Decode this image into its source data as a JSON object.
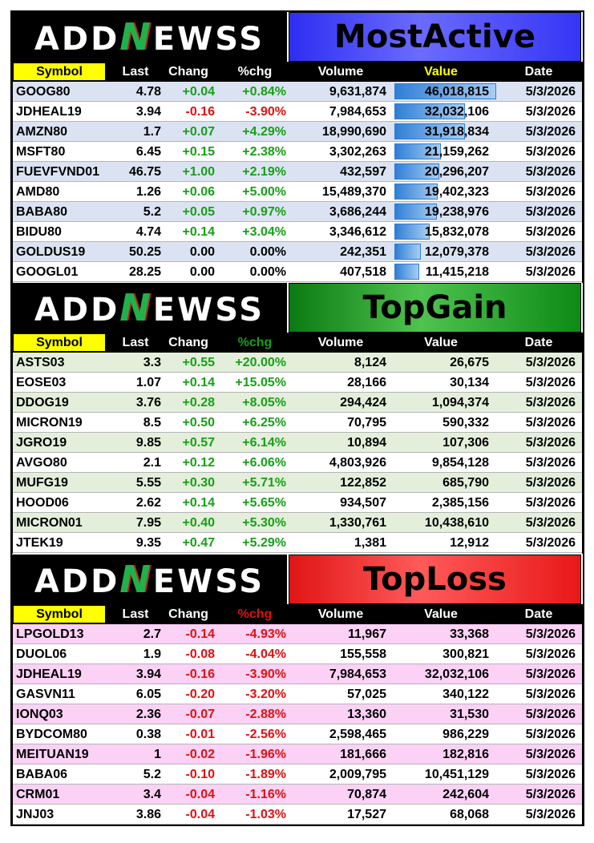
{
  "brand": {
    "logo_text_pre": "ADD",
    "logo_text_n": "N",
    "logo_text_post": "EWSS"
  },
  "columns": {
    "symbol": "Symbol",
    "last": "Last",
    "change": "Chang",
    "pct": "%chg",
    "volume": "Volume",
    "value": "Value",
    "date": "Date"
  },
  "colors": {
    "positive": "#16a016",
    "negative": "#e01010",
    "header_symbol_bg": "#ffff00",
    "mostactive_stripe": "#dbe3f2",
    "topgain_stripe": "#e3efda",
    "toploss_stripe": "#fbd1f5"
  },
  "panels": [
    {
      "id": "mostactive",
      "title": "MostActive",
      "pct_header_color": "#ffffff",
      "value_header_color": "#ffff00",
      "stripe": "#dbe3f2",
      "rows": [
        {
          "symbol": "GOOG80",
          "last": "4.78",
          "change": "+0.04",
          "pct": "+0.84%",
          "volume": "9,631,874",
          "value": "46,018,815",
          "date": "5/3/2026",
          "bar_fraction": 1.0,
          "dir": "pos"
        },
        {
          "symbol": "JDHEAL19",
          "last": "3.94",
          "change": "-0.16",
          "pct": "-3.90%",
          "volume": "7,984,653",
          "value": "32,032,106",
          "date": "5/3/2026",
          "bar_fraction": 0.696,
          "dir": "neg"
        },
        {
          "symbol": "AMZN80",
          "last": "1.7",
          "change": "+0.07",
          "pct": "+4.29%",
          "volume": "18,990,690",
          "value": "31,918,834",
          "date": "5/3/2026",
          "bar_fraction": 0.694,
          "dir": "pos"
        },
        {
          "symbol": "MSFT80",
          "last": "6.45",
          "change": "+0.15",
          "pct": "+2.38%",
          "volume": "3,302,263",
          "value": "21,159,262",
          "date": "5/3/2026",
          "bar_fraction": 0.46,
          "dir": "pos"
        },
        {
          "symbol": "FUEVFVND01",
          "last": "46.75",
          "change": "+1.00",
          "pct": "+2.19%",
          "volume": "432,597",
          "value": "20,296,207",
          "date": "5/3/2026",
          "bar_fraction": 0.441,
          "dir": "pos"
        },
        {
          "symbol": "AMD80",
          "last": "1.26",
          "change": "+0.06",
          "pct": "+5.00%",
          "volume": "15,489,370",
          "value": "19,402,323",
          "date": "5/3/2026",
          "bar_fraction": 0.422,
          "dir": "pos"
        },
        {
          "symbol": "BABA80",
          "last": "5.2",
          "change": "+0.05",
          "pct": "+0.97%",
          "volume": "3,686,244",
          "value": "19,238,976",
          "date": "5/3/2026",
          "bar_fraction": 0.418,
          "dir": "pos"
        },
        {
          "symbol": "BIDU80",
          "last": "4.74",
          "change": "+0.14",
          "pct": "+3.04%",
          "volume": "3,346,612",
          "value": "15,832,078",
          "date": "5/3/2026",
          "bar_fraction": 0.344,
          "dir": "pos"
        },
        {
          "symbol": "GOLDUS19",
          "last": "50.25",
          "change": "0.00",
          "pct": "0.00%",
          "volume": "242,351",
          "value": "12,079,378",
          "date": "5/3/2026",
          "bar_fraction": 0.262,
          "dir": "neutral"
        },
        {
          "symbol": "GOOGL01",
          "last": "28.25",
          "change": "0.00",
          "pct": "0.00%",
          "volume": "407,518",
          "value": "11,415,218",
          "date": "5/3/2026",
          "bar_fraction": 0.248,
          "dir": "neutral"
        }
      ]
    },
    {
      "id": "topgain",
      "title": "TopGain",
      "pct_header_color": "#16a016",
      "value_header_color": "#ffffff",
      "stripe": "#e3efda",
      "rows": [
        {
          "symbol": "ASTS03",
          "last": "3.3",
          "change": "+0.55",
          "pct": "+20.00%",
          "volume": "8,124",
          "value": "26,675",
          "date": "5/3/2026",
          "dir": "pos"
        },
        {
          "symbol": "EOSE03",
          "last": "1.07",
          "change": "+0.14",
          "pct": "+15.05%",
          "volume": "28,166",
          "value": "30,134",
          "date": "5/3/2026",
          "dir": "pos"
        },
        {
          "symbol": "DDOG19",
          "last": "3.76",
          "change": "+0.28",
          "pct": "+8.05%",
          "volume": "294,424",
          "value": "1,094,374",
          "date": "5/3/2026",
          "dir": "pos"
        },
        {
          "symbol": "MICRON19",
          "last": "8.5",
          "change": "+0.50",
          "pct": "+6.25%",
          "volume": "70,795",
          "value": "590,332",
          "date": "5/3/2026",
          "dir": "pos"
        },
        {
          "symbol": "JGRO19",
          "last": "9.85",
          "change": "+0.57",
          "pct": "+6.14%",
          "volume": "10,894",
          "value": "107,306",
          "date": "5/3/2026",
          "dir": "pos"
        },
        {
          "symbol": "AVGO80",
          "last": "2.1",
          "change": "+0.12",
          "pct": "+6.06%",
          "volume": "4,803,926",
          "value": "9,854,128",
          "date": "5/3/2026",
          "dir": "pos"
        },
        {
          "symbol": "MUFG19",
          "last": "5.55",
          "change": "+0.30",
          "pct": "+5.71%",
          "volume": "122,852",
          "value": "685,790",
          "date": "5/3/2026",
          "dir": "pos"
        },
        {
          "symbol": "HOOD06",
          "last": "2.62",
          "change": "+0.14",
          "pct": "+5.65%",
          "volume": "934,507",
          "value": "2,385,156",
          "date": "5/3/2026",
          "dir": "pos"
        },
        {
          "symbol": "MICRON01",
          "last": "7.95",
          "change": "+0.40",
          "pct": "+5.30%",
          "volume": "1,330,761",
          "value": "10,438,610",
          "date": "5/3/2026",
          "dir": "pos"
        },
        {
          "symbol": "JTEK19",
          "last": "9.35",
          "change": "+0.47",
          "pct": "+5.29%",
          "volume": "1,381",
          "value": "12,912",
          "date": "5/3/2026",
          "dir": "pos"
        }
      ]
    },
    {
      "id": "toploss",
      "title": "TopLoss",
      "pct_header_color": "#e01010",
      "value_header_color": "#ffffff",
      "stripe": "#fbd1f5",
      "rows": [
        {
          "symbol": "LPGOLD13",
          "last": "2.7",
          "change": "-0.14",
          "pct": "-4.93%",
          "volume": "11,967",
          "value": "33,368",
          "date": "5/3/2026",
          "dir": "neg"
        },
        {
          "symbol": "DUOL06",
          "last": "1.9",
          "change": "-0.08",
          "pct": "-4.04%",
          "volume": "155,558",
          "value": "300,821",
          "date": "5/3/2026",
          "dir": "neg"
        },
        {
          "symbol": "JDHEAL19",
          "last": "3.94",
          "change": "-0.16",
          "pct": "-3.90%",
          "volume": "7,984,653",
          "value": "32,032,106",
          "date": "5/3/2026",
          "dir": "neg"
        },
        {
          "symbol": "GASVN11",
          "last": "6.05",
          "change": "-0.20",
          "pct": "-3.20%",
          "volume": "57,025",
          "value": "340,122",
          "date": "5/3/2026",
          "dir": "neg"
        },
        {
          "symbol": "IONQ03",
          "last": "2.36",
          "change": "-0.07",
          "pct": "-2.88%",
          "volume": "13,360",
          "value": "31,530",
          "date": "5/3/2026",
          "dir": "neg"
        },
        {
          "symbol": "BYDCOM80",
          "last": "0.38",
          "change": "-0.01",
          "pct": "-2.56%",
          "volume": "2,598,465",
          "value": "986,229",
          "date": "5/3/2026",
          "dir": "neg"
        },
        {
          "symbol": "MEITUAN19",
          "last": "1",
          "change": "-0.02",
          "pct": "-1.96%",
          "volume": "181,666",
          "value": "182,816",
          "date": "5/3/2026",
          "dir": "neg"
        },
        {
          "symbol": "BABA06",
          "last": "5.2",
          "change": "-0.10",
          "pct": "-1.89%",
          "volume": "2,009,795",
          "value": "10,451,129",
          "date": "5/3/2026",
          "dir": "neg"
        },
        {
          "symbol": "CRM01",
          "last": "3.4",
          "change": "-0.04",
          "pct": "-1.16%",
          "volume": "70,874",
          "value": "242,604",
          "date": "5/3/2026",
          "dir": "neg"
        },
        {
          "symbol": "JNJ03",
          "last": "3.86",
          "change": "-0.04",
          "pct": "-1.03%",
          "volume": "17,527",
          "value": "68,068",
          "date": "5/3/2026",
          "dir": "neg"
        }
      ]
    }
  ]
}
